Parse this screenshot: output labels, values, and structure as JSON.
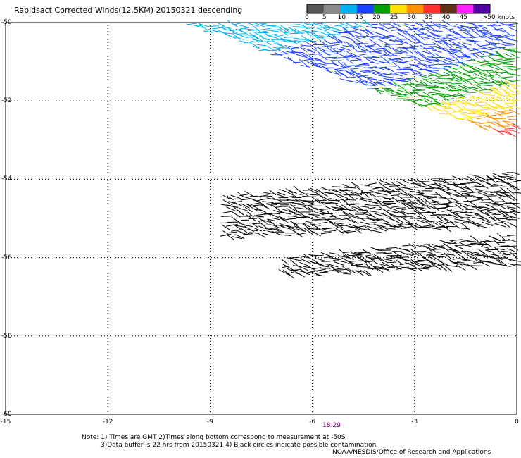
{
  "title": "Rapidsact Corrected Winds(12.5KM) 20150321 descending",
  "colorbar": {
    "labels": [
      "0",
      "5",
      "10",
      "15",
      "20",
      "25",
      "30",
      "35",
      "40",
      "45",
      ">50 knots"
    ],
    "colors": [
      "#555555",
      "#8a8a8a",
      "#00b0f0",
      "#1a40ff",
      "#00a000",
      "#ffe000",
      "#ff9000",
      "#ff3030",
      "#603018",
      "#ff20ff",
      "#5000a0"
    ]
  },
  "chart_data": {
    "type": "scatter",
    "x_ticks": [
      "-15",
      "-12",
      "-9",
      "-6",
      "-3",
      "0"
    ],
    "y_ticks": [
      "-50",
      "-52",
      "-54",
      "-56",
      "-58",
      "-60"
    ],
    "xlim": [
      -15,
      0
    ],
    "ylim": [
      -60,
      -50
    ],
    "grid": true,
    "time_label": "18:29",
    "swaths": [
      {
        "description_color": "colored",
        "lon_start": -9.8,
        "lon_end": 0,
        "lat_top": -50.0,
        "lat_bottom_west": -50.0,
        "lat_bottom_east": -53.0
      },
      {
        "description_color": "black",
        "lon_start": -8.5,
        "lon_end": 0,
        "lat_top": -54.0,
        "lat_bottom": -55.5
      },
      {
        "description_color": "black",
        "lon_start": -6.8,
        "lon_end": 0,
        "lat_top": -55.6,
        "lat_bottom": -56.5
      }
    ]
  },
  "notes": {
    "line1": "Note: 1) Times are GMT 2)Times along bottom correspond to measurement at -50S",
    "line2": "3)Data buffer is 22 hrs from 20150321 4) Black circles indicate possible contamination",
    "credit": "NOAA/NESDIS/Office of Research and Applications"
  }
}
